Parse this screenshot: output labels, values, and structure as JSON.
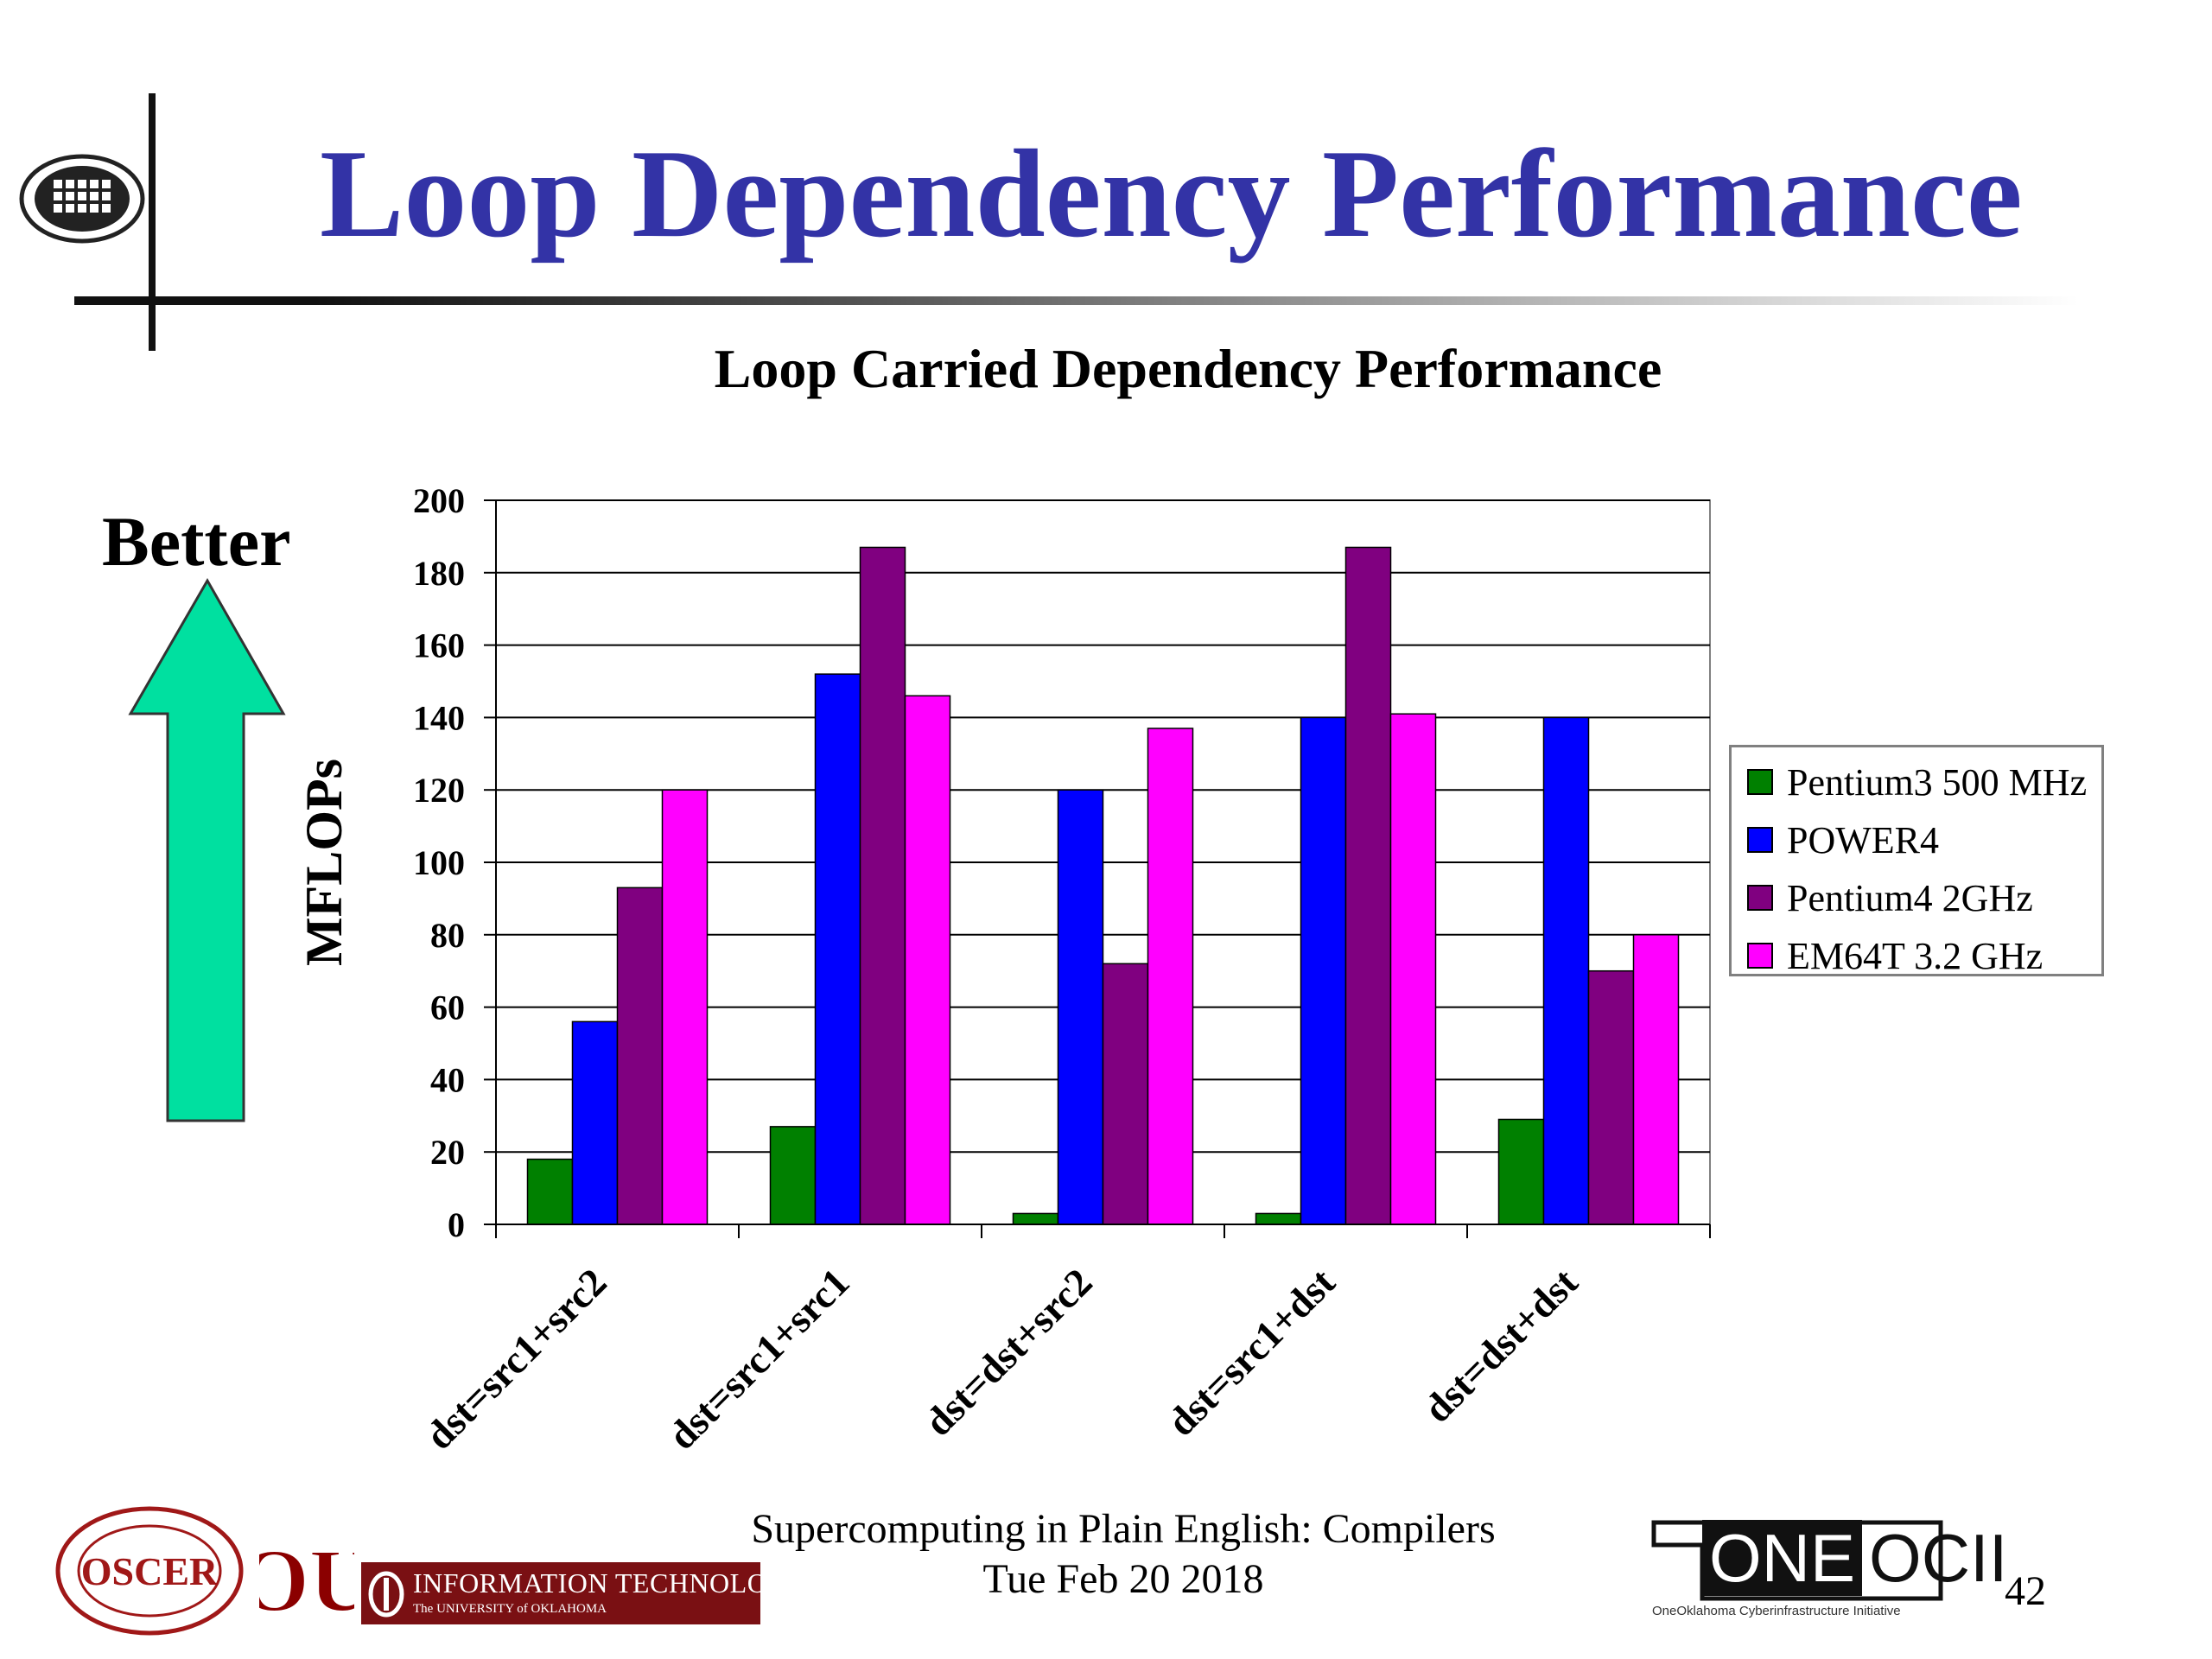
{
  "slide": {
    "title": "Loop Dependency Performance",
    "better_label": "Better",
    "page_number": "42"
  },
  "footer": {
    "line1": "Supercomputing in Plain English: Compilers",
    "line2": "Tue Feb 20 2018",
    "it_banner": "INFORMATION TECHNOLOGY",
    "it_banner_sub": "The UNIVERSITY of OKLAHOMA",
    "oscer_logo_text": "OSCER",
    "ou_logo_text": "OU",
    "oneocii_one": "ONE",
    "oneocii_ocii": "OCII",
    "oneocii_tagline": "OneOklahoma Cyberinfrastructure Initiative"
  },
  "colors": {
    "title": "#3333a6",
    "arrow": "#00e0a0",
    "it_banner": "#7a1013",
    "ou_red": "#8b0000"
  },
  "chart_data": {
    "type": "bar",
    "title": "Loop Carried Dependency Performance",
    "ylabel": "MFLOPs",
    "xlabel": "",
    "ylim": [
      0,
      200
    ],
    "yticks": [
      0,
      20,
      40,
      60,
      80,
      100,
      120,
      140,
      160,
      180,
      200
    ],
    "grid": true,
    "legend_position": "right",
    "categories": [
      "dst=src1+src2",
      "dst=src1+src1",
      "dst=dst+src2",
      "dst=src1+dst",
      "dst=dst+dst"
    ],
    "series": [
      {
        "name": "Pentium3 500 MHz",
        "color": "#008000",
        "values": [
          18,
          27,
          3,
          3,
          29
        ]
      },
      {
        "name": "POWER4",
        "color": "#0000ff",
        "values": [
          56,
          152,
          120,
          140,
          140
        ]
      },
      {
        "name": "Pentium4 2GHz",
        "color": "#800080",
        "values": [
          93,
          187,
          72,
          187,
          70
        ]
      },
      {
        "name": "EM64T 3.2 GHz",
        "color": "#ff00ff",
        "values": [
          120,
          146,
          137,
          141,
          80
        ]
      }
    ]
  }
}
